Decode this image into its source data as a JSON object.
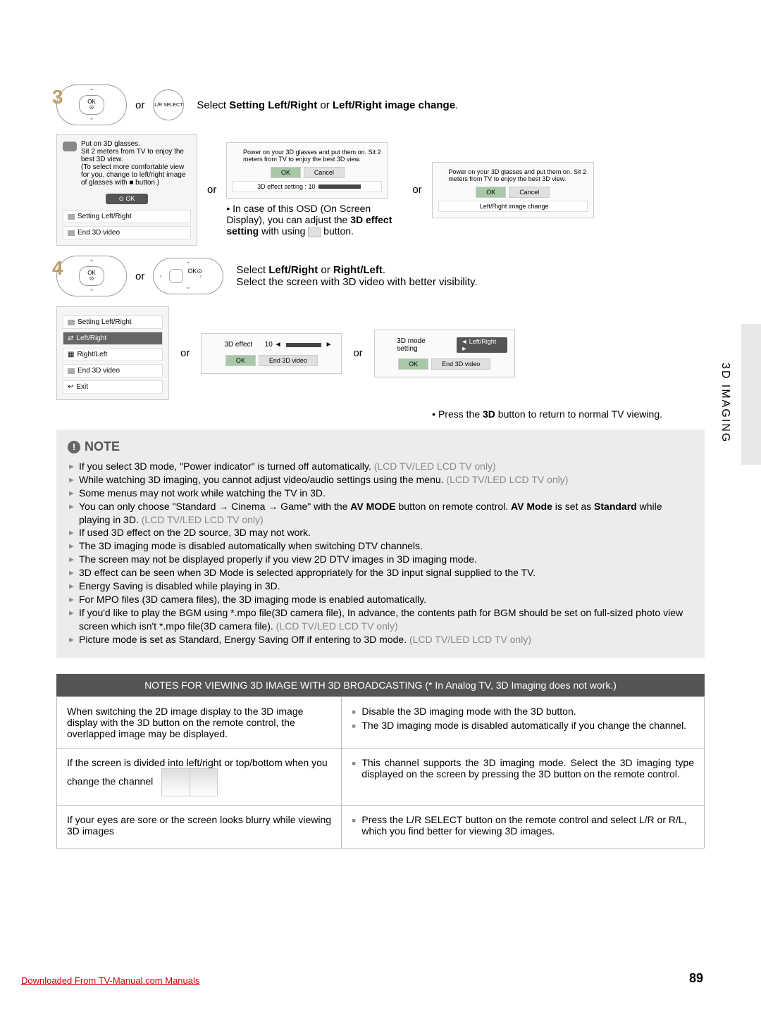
{
  "step3": {
    "number": "3",
    "ok_label_top": "OK",
    "ok_label_dot": "⊙",
    "or": "or",
    "lr_select": "L/R SELECT",
    "instruction_prefix": "Select ",
    "instruction_b1": "Setting Left/Right",
    "instruction_mid": " or ",
    "instruction_b2": "Left/Right image change",
    "instruction_suffix": "."
  },
  "menu": {
    "line1": "Put on 3D glasses.",
    "line2": "Sit 2 meters from TV to enjoy the best 3D view.",
    "line3": "(To select more comfortable view for you, change to left/right image of glasses with ■ button.)",
    "ok": "⊙ OK",
    "item1": "Setting Left/Right",
    "item2": "End 3D video"
  },
  "osd1": {
    "info": "Power on your 3D glasses and put them on. Sit 2 meters from TV to enjoy the best 3D view.",
    "ok": "OK",
    "cancel": "Cancel",
    "slider": "3D effect setting : 10"
  },
  "osd1_note_bullet": "• In case of this OSD (On Screen Display), you can adjust the ",
  "osd1_note_bold": "3D effect setting",
  "osd1_note_after": " with using ",
  "osd1_note_end": " button.",
  "osd2": {
    "info": "Power on your 3D glasses and put them on. Sit 2 meters from TV to enjoy the best 3D view.",
    "ok": "OK",
    "cancel": "Cancel",
    "slider": "Left/Right image change"
  },
  "step4": {
    "number": "4",
    "ok_label_top": "OK",
    "ok_label_dot": "⊙",
    "or": "or",
    "instruction_prefix": "Select ",
    "instruction_b1": "Left/Right",
    "instruction_mid": " or ",
    "instruction_b2": "Right/Left",
    "instruction_suffix": ".",
    "instruction_line2": "Select the screen with 3D video with better visibility."
  },
  "menu2": {
    "header": "Setting Left/Right",
    "opt1": "Left/Right",
    "opt2": "Right/Left",
    "item3": "End 3D video",
    "item4": "Exit"
  },
  "effect1": {
    "label": "3D effect",
    "value": "10 ◄",
    "arrow_r": "►",
    "ok": "OK",
    "end": "End 3D video"
  },
  "effect2": {
    "label": "3D mode setting",
    "mode": "◄ Left/Right ►",
    "ok": "OK",
    "end": "End 3D video"
  },
  "return_note": "• Press the ",
  "return_note_b": "3D",
  "return_note_end": " button to return to normal TV viewing.",
  "note": {
    "header": "NOTE",
    "items": [
      {
        "t": "If you select 3D mode, \"Power indicator\" is turned off automatically. ",
        "g": "(LCD TV/LED LCD TV only)"
      },
      {
        "t": "While watching 3D imaging, you cannot adjust video/audio settings using the menu. ",
        "g": "(LCD TV/LED LCD TV only)"
      },
      {
        "t": "Some menus may not work while watching the TV in 3D.",
        "g": ""
      },
      {
        "t": "You can only choose \"Standard → Cinema → Game\" with the <b>AV MODE</b> button on remote control. <b>AV Mode</b> is set as <b>Standard</b> while playing in 3D. ",
        "g": "(LCD TV/LED LCD TV only)"
      },
      {
        "t": "If used 3D effect on the 2D source, 3D may not work.",
        "g": ""
      },
      {
        "t": "The 3D imaging mode is disabled automatically when switching DTV channels.",
        "g": ""
      },
      {
        "t": "The screen may not be displayed properly if you view 2D DTV images in 3D imaging mode.",
        "g": ""
      },
      {
        "t": "3D effect can be seen when 3D Mode is selected appropriately for the 3D input signal supplied to the TV.",
        "g": ""
      },
      {
        "t": "Energy Saving is disabled while playing in 3D.",
        "g": ""
      },
      {
        "t": "For MPO files (3D camera files), the 3D imaging mode is enabled automatically.",
        "g": ""
      },
      {
        "t": "If you'd like to play the BGM using *.mpo file(3D camera file), In advance, the contents path for BGM should be set on full-sized photo view screen which isn't *.mpo file(3D camera file). ",
        "g": "(LCD TV/LED LCD TV only)"
      },
      {
        "t": "Picture mode is set as Standard, Energy Saving Off if entering to 3D mode. ",
        "g": "(LCD TV/LED LCD TV only)"
      }
    ]
  },
  "notes_table": {
    "header": "NOTES FOR VIEWING 3D IMAGE WITH 3D BROADCASTING (* In Analog TV, 3D Imaging does not work.)",
    "r1l": "When switching the 2D image display to the 3D image display with the 3D button on the remote control, the overlapped image may be displayed.",
    "r1r_a": "Disable the 3D imaging mode with the 3D button.",
    "r1r_b": "The 3D imaging mode is disabled automatically if you change the channel.",
    "r2l": "If the screen is divided into left/right or top/bottom when you change the channel",
    "r2r": "This channel supports the 3D imaging mode. Select the 3D imaging type displayed on the screen by pressing the 3D button on the remote control.",
    "r3l": "If your eyes are sore or the screen looks blurry while viewing 3D images",
    "r3r": "Press the L/R SELECT button on the remote control and select L/R or R/L, which you find better for viewing 3D images."
  },
  "side_label": "3D IMAGING",
  "page_number": "89",
  "footer": "Downloaded From TV-Manual.com Manuals"
}
